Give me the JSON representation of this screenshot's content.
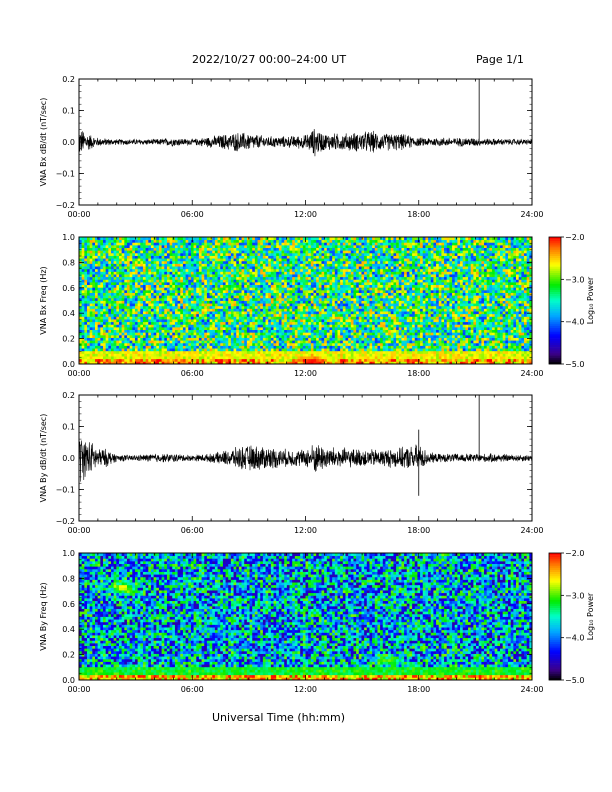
{
  "header": {
    "title": "2022/10/27  00:00–24:00 UT",
    "page": "Page 1/1"
  },
  "footer": {
    "xlabel": "Universal Time (hh:mm)"
  },
  "chart_data": [
    {
      "type": "line",
      "ylabel": "VNA Bx dB/dt (nT/sec)",
      "xlim": [
        0,
        24
      ],
      "ylim": [
        -0.2,
        0.2
      ],
      "x_ticks": [
        "00:00",
        "06:00",
        "12:00",
        "18:00",
        "24:00"
      ],
      "y_ticks": [
        "0.2",
        "0.1",
        "0.0",
        "−0.1",
        "−0.2"
      ],
      "y_tick_values": [
        0.2,
        0.1,
        0.0,
        -0.1,
        -0.2
      ],
      "envelope_x": [
        0,
        0.5,
        1,
        2,
        3,
        4,
        5,
        6,
        7,
        8,
        8.5,
        9,
        10,
        11,
        12,
        12.5,
        13,
        14,
        15,
        15.5,
        16,
        17,
        18,
        19,
        20,
        21,
        21.5,
        22,
        23,
        24
      ],
      "envelope_amp": [
        0.05,
        0.03,
        0.015,
        0.01,
        0.01,
        0.01,
        0.015,
        0.01,
        0.02,
        0.03,
        0.035,
        0.03,
        0.02,
        0.02,
        0.025,
        0.05,
        0.03,
        0.03,
        0.035,
        0.04,
        0.03,
        0.03,
        0.015,
        0.015,
        0.015,
        0.015,
        0.012,
        0.012,
        0.01,
        0.01
      ],
      "spikes": [
        {
          "x": 21.2,
          "y": 0.2
        }
      ]
    },
    {
      "type": "heatmap",
      "ylabel": "VNA Bx Freq (Hz)",
      "xlim": [
        0,
        24
      ],
      "ylim": [
        0.0,
        1.0
      ],
      "x_ticks": [
        "00:00",
        "06:00",
        "12:00",
        "18:00",
        "24:00"
      ],
      "y_ticks": [
        "1.0",
        "0.8",
        "0.6",
        "0.4",
        "0.2",
        "0.0"
      ],
      "y_tick_values": [
        1.0,
        0.8,
        0.6,
        0.4,
        0.2,
        0.0
      ],
      "colorbar_label": "Log₁₀ Power",
      "colorbar_ticks": [
        "−2.0",
        "−3.0",
        "−4.0",
        "−5.0"
      ],
      "colorbar_tick_values": [
        -2.0,
        -3.0,
        -4.0,
        -5.0
      ],
      "zlim": [
        -5.0,
        -2.0
      ],
      "background_log_power": -3.3,
      "low_freq_band": {
        "max_freq": 0.05,
        "log_power": -2.4
      },
      "hotspots": [
        {
          "x": 12.3,
          "f": 0.02,
          "log_power": -2.0
        }
      ]
    },
    {
      "type": "line",
      "ylabel": "VNA By dB/dt (nT/sec)",
      "xlim": [
        0,
        24
      ],
      "ylim": [
        -0.2,
        0.2
      ],
      "x_ticks": [
        "00:00",
        "06:00",
        "12:00",
        "18:00",
        "24:00"
      ],
      "y_ticks": [
        "0.2",
        "0.1",
        "0.0",
        "−0.1",
        "−0.2"
      ],
      "y_tick_values": [
        0.2,
        0.1,
        0.0,
        -0.1,
        -0.2
      ],
      "envelope_x": [
        0,
        0.3,
        0.6,
        1,
        1.5,
        2,
        3,
        4,
        5,
        6,
        7,
        8,
        8.5,
        9,
        10,
        11,
        12,
        12.5,
        13,
        14,
        15,
        16,
        17,
        17.5,
        18,
        18.5,
        19,
        20,
        21,
        22,
        23,
        24
      ],
      "envelope_amp": [
        0.09,
        0.07,
        0.06,
        0.035,
        0.03,
        0.012,
        0.01,
        0.015,
        0.015,
        0.01,
        0.015,
        0.03,
        0.04,
        0.045,
        0.04,
        0.03,
        0.03,
        0.055,
        0.04,
        0.035,
        0.03,
        0.03,
        0.035,
        0.04,
        0.05,
        0.02,
        0.015,
        0.015,
        0.015,
        0.015,
        0.012,
        0.012
      ],
      "spikes": [
        {
          "x": 21.2,
          "y": 0.2
        },
        {
          "x": 18.0,
          "y": 0.09
        },
        {
          "x": 18.0,
          "y": -0.12
        }
      ]
    },
    {
      "type": "heatmap",
      "ylabel": "VNA By Freq (Hz)",
      "xlim": [
        0,
        24
      ],
      "ylim": [
        0.0,
        1.0
      ],
      "x_ticks": [
        "00:00",
        "06:00",
        "12:00",
        "18:00",
        "24:00"
      ],
      "y_ticks": [
        "1.0",
        "0.8",
        "0.6",
        "0.4",
        "0.2",
        "0.0"
      ],
      "y_tick_values": [
        1.0,
        0.8,
        0.6,
        0.4,
        0.2,
        0.0
      ],
      "colorbar_label": "Log₁₀ Power",
      "colorbar_ticks": [
        "−2.0",
        "−3.0",
        "−4.0",
        "−5.0"
      ],
      "colorbar_tick_values": [
        -2.0,
        -3.0,
        -4.0,
        -5.0
      ],
      "zlim": [
        -5.0,
        -2.0
      ],
      "background_log_power": -3.8,
      "low_freq_band": {
        "max_freq": 0.05,
        "log_power": -2.5
      },
      "hotspots": [
        {
          "x": 2.3,
          "f": 0.73,
          "log_power": -2.6
        },
        {
          "x": 16.5,
          "f": 0.15,
          "log_power": -3.0
        }
      ]
    }
  ]
}
